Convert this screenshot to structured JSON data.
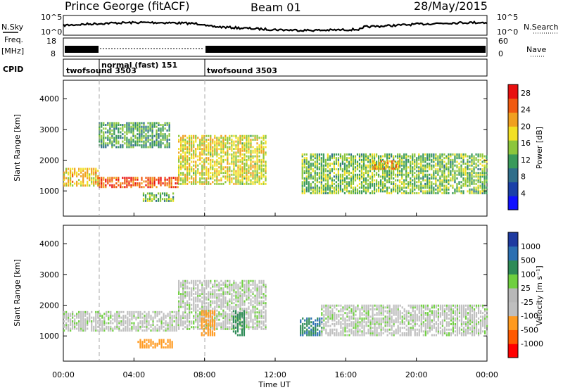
{
  "header": {
    "station": "Prince George (fitACF)",
    "beam": "Beam 01",
    "date": "28/May/2015"
  },
  "strip_labels": {
    "nsky": "N.Sky",
    "nsearch": "N.Search",
    "freq_line1": "Freq.",
    "freq_line2": "[MHz]",
    "nave": "Nave",
    "cpid": "CPID",
    "noise_ticks_left": [
      "10^5",
      "10^0"
    ],
    "noise_ticks_right": [
      "10^5",
      "10^0"
    ],
    "freq_ticks_left": [
      "18",
      "8"
    ],
    "nave_ticks_right": [
      "60",
      "0"
    ]
  },
  "cpid_segments": [
    {
      "label": "twofsound 3503",
      "start_hour": 0
    },
    {
      "label": "normal (fast) 151",
      "start_hour": 2
    },
    {
      "label": "twofsound 3503",
      "start_hour": 8
    }
  ],
  "colors": {
    "power": [
      "#1010ff",
      "#1a40a8",
      "#2f6e8a",
      "#3a9a5a",
      "#8cc63c",
      "#f2e024",
      "#f0a020",
      "#f05a10",
      "#e81010"
    ],
    "velocity": [
      "#ff0000",
      "#ff5a00",
      "#ff9a20",
      "#bfbfbf",
      "#b8b8b8",
      "#6fcf3f",
      "#2e8b57",
      "#2b6fb2",
      "#1e3aa0"
    ],
    "ground_scatter": "#c0c0c0"
  },
  "chart_data": [
    {
      "type": "heatmap",
      "name": "Power",
      "xlabel": "Time UT",
      "ylabel": "Slant Range [km]",
      "x_ticks": [
        "00:00",
        "04:00",
        "08:00",
        "12:00",
        "16:00",
        "20:00",
        "00:00"
      ],
      "x_range_hours": [
        0,
        24
      ],
      "y_ticks": [
        1000,
        2000,
        3000,
        4000
      ],
      "y_range_km": [
        180,
        4600
      ],
      "colorbar_label": "Power [dB]",
      "colorbar_ticks": [
        4,
        8,
        12,
        16,
        20,
        24,
        28
      ],
      "colorbar_range": [
        0,
        30
      ],
      "echo_regions": [
        {
          "t_start": 0.0,
          "t_end": 2.0,
          "r_start": 1150,
          "r_end": 1750,
          "level": 20
        },
        {
          "t_start": 2.0,
          "t_end": 6.5,
          "r_start": 1100,
          "r_end": 1450,
          "level": 26
        },
        {
          "t_start": 6.5,
          "t_end": 11.5,
          "r_start": 1200,
          "r_end": 2800,
          "level": 18
        },
        {
          "t_start": 2.0,
          "t_end": 6.0,
          "r_start": 2400,
          "r_end": 3200,
          "level": 12
        },
        {
          "t_start": 4.5,
          "t_end": 6.2,
          "r_start": 650,
          "r_end": 900,
          "level": 14
        },
        {
          "t_start": 13.5,
          "t_end": 24.0,
          "r_start": 900,
          "r_end": 2200,
          "level": 14
        },
        {
          "t_start": 17.5,
          "t_end": 19.0,
          "r_start": 1700,
          "r_end": 2000,
          "level": 22
        }
      ]
    },
    {
      "type": "heatmap",
      "name": "Velocity",
      "xlabel": "Time UT",
      "ylabel": "Slant Range [km]",
      "x_ticks": [
        "00:00",
        "04:00",
        "08:00",
        "12:00",
        "16:00",
        "20:00",
        "00:00"
      ],
      "x_range_hours": [
        0,
        24
      ],
      "y_ticks": [
        1000,
        2000,
        3000,
        4000
      ],
      "y_range_km": [
        180,
        4600
      ],
      "colorbar_label": "Velocity [m s⁻¹]",
      "colorbar_ticks": [
        "1000",
        "500",
        "100",
        "25",
        "-25",
        "-100",
        "-500",
        "-1000"
      ],
      "echo_regions": [
        {
          "t_start": 0.0,
          "t_end": 6.5,
          "r_start": 1150,
          "r_end": 1800,
          "velocity": 0
        },
        {
          "t_start": 6.5,
          "t_end": 11.5,
          "r_start": 1200,
          "r_end": 2800,
          "velocity": 0
        },
        {
          "t_start": 4.2,
          "t_end": 6.2,
          "r_start": 600,
          "r_end": 900,
          "velocity": -300
        },
        {
          "t_start": 7.8,
          "t_end": 8.6,
          "r_start": 1000,
          "r_end": 1800,
          "velocity": -400
        },
        {
          "t_start": 9.6,
          "t_end": 10.3,
          "r_start": 1000,
          "r_end": 1800,
          "velocity": 400
        },
        {
          "t_start": 13.4,
          "t_end": 14.6,
          "r_start": 1000,
          "r_end": 1600,
          "velocity": 500
        },
        {
          "t_start": 14.6,
          "t_end": 24.0,
          "r_start": 1000,
          "r_end": 2000,
          "velocity": 0
        }
      ]
    }
  ]
}
